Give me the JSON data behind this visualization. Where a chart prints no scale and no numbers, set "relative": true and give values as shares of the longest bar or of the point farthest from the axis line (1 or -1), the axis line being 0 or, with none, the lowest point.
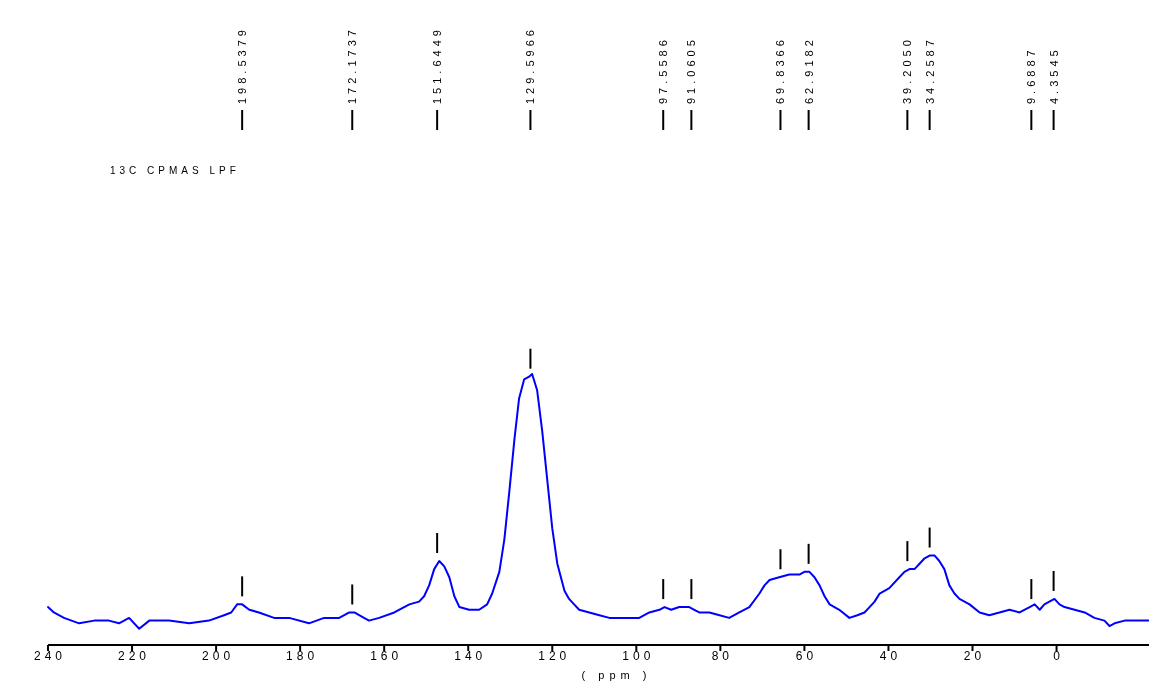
{
  "chart_data": {
    "type": "line",
    "title": "13C CPMAS LPF",
    "xlabel": "( ppm )",
    "relative": true,
    "xlim": [
      240,
      -22
    ],
    "xticks": [
      240,
      220,
      200,
      180,
      160,
      140,
      120,
      100,
      80,
      60,
      40,
      20,
      0
    ],
    "series": [
      {
        "color": "#0000ff",
        "x": [
          240,
          238.6,
          236.2,
          232.6,
          229,
          225.5,
          223.1,
          220.7,
          218.3,
          215.9,
          211.2,
          206.4,
          201.7,
          198.1,
          196.4,
          195,
          193.8,
          192.1,
          189.8,
          186.2,
          182.6,
          177.9,
          174.3,
          170.7,
          168.3,
          167.1,
          164.8,
          163.6,
          161.2,
          157.6,
          154,
          151.7,
          150.5,
          149.3,
          148.1,
          146.9,
          145.7,
          144.5,
          143.3,
          142.1,
          139.8,
          137.4,
          135.5,
          134.3,
          132.6,
          131.4,
          130.2,
          129,
          127.9,
          126.7,
          125.5,
          124.8,
          123.6,
          122.4,
          121.2,
          120,
          118.8,
          117.1,
          116,
          114.8,
          113.6,
          111.2,
          108.8,
          106.4,
          104,
          99.3,
          96.9,
          94.5,
          93.3,
          91.7,
          89.8,
          87.4,
          86.2,
          85,
          82.6,
          80.2,
          77.9,
          75.5,
          73.1,
          70.7,
          69.5,
          68.3,
          66,
          63.6,
          61.2,
          60,
          58.8,
          57.6,
          56.4,
          55.2,
          54,
          51.7,
          49.3,
          47.4,
          45.7,
          44.5,
          43.3,
          42.1,
          39.8,
          37.4,
          36.2,
          35,
          33.8,
          32.6,
          31.4,
          30.2,
          29,
          27.9,
          26.7,
          25.5,
          24.3,
          23.1,
          20.7,
          18.3,
          16,
          13.6,
          11.2,
          8.8,
          6.4,
          5.2,
          4,
          2.9,
          1.7,
          0.5,
          -0.7,
          -1.9,
          -4.3,
          -6.7,
          -9,
          -11.4,
          -12.6,
          -13.8,
          -16.2,
          -18.6,
          -21.9
        ],
        "values": [
          0.14,
          0.12,
          0.1,
          0.08,
          0.09,
          0.09,
          0.08,
          0.1,
          0.06,
          0.09,
          0.09,
          0.08,
          0.09,
          0.11,
          0.12,
          0.15,
          0.15,
          0.13,
          0.12,
          0.1,
          0.1,
          0.08,
          0.1,
          0.1,
          0.12,
          0.12,
          0.1,
          0.09,
          0.1,
          0.12,
          0.15,
          0.16,
          0.18,
          0.22,
          0.28,
          0.31,
          0.29,
          0.25,
          0.18,
          0.14,
          0.13,
          0.13,
          0.15,
          0.19,
          0.27,
          0.39,
          0.57,
          0.76,
          0.91,
          0.98,
          0.99,
          1,
          0.94,
          0.79,
          0.61,
          0.43,
          0.3,
          0.2,
          0.17,
          0.15,
          0.13,
          0.12,
          0.11,
          0.1,
          0.1,
          0.1,
          0.12,
          0.13,
          0.14,
          0.13,
          0.14,
          0.14,
          0.13,
          0.12,
          0.12,
          0.11,
          0.1,
          0.12,
          0.14,
          0.19,
          0.22,
          0.24,
          0.25,
          0.26,
          0.26,
          0.27,
          0.27,
          0.25,
          0.22,
          0.18,
          0.15,
          0.13,
          0.1,
          0.11,
          0.12,
          0.14,
          0.16,
          0.19,
          0.21,
          0.25,
          0.27,
          0.28,
          0.28,
          0.3,
          0.32,
          0.33,
          0.33,
          0.31,
          0.28,
          0.22,
          0.19,
          0.17,
          0.15,
          0.12,
          0.11,
          0.12,
          0.13,
          0.12,
          0.14,
          0.15,
          0.13,
          0.15,
          0.16,
          0.17,
          0.15,
          0.14,
          0.13,
          0.12,
          0.1,
          0.09,
          0.07,
          0.08,
          0.09,
          0.09,
          0.09
        ]
      }
    ],
    "annotations": [
      {
        "text": "198.5379",
        "x": 193.8
      },
      {
        "text": "172.1737",
        "x": 167.6
      },
      {
        "text": "151.6449",
        "x": 147.4
      },
      {
        "text": "129.5966",
        "x": 125.2
      },
      {
        "text": "97.5586",
        "x": 93.6
      },
      {
        "text": "91.0605",
        "x": 86.9
      },
      {
        "text": "69.8366",
        "x": 65.7
      },
      {
        "text": "62.9182",
        "x": 59
      },
      {
        "text": "39.2050",
        "x": 35.5
      },
      {
        "text": "34.2587",
        "x": 30.2
      },
      {
        "text": "9.6887",
        "x": 6
      },
      {
        "text": "4.3545",
        "x": 0.7
      }
    ]
  }
}
